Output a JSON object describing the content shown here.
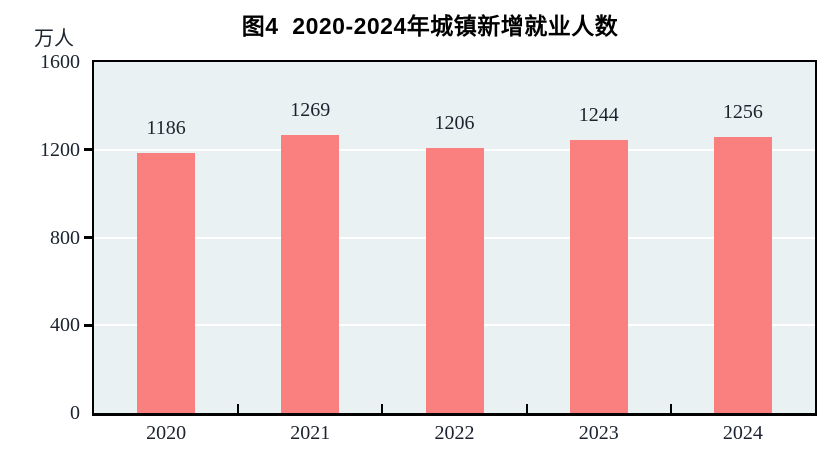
{
  "chart_data": {
    "type": "bar",
    "title": "图4  2020-2024年城镇新增就业人数",
    "unit": "万人",
    "xlabel": "",
    "ylabel": "万人",
    "categories": [
      "2020",
      "2021",
      "2022",
      "2023",
      "2024"
    ],
    "values": [
      1186,
      1269,
      1206,
      1244,
      1256
    ],
    "value_labels": [
      "1186",
      "1269",
      "1206",
      "1244",
      "1256"
    ],
    "ylim": [
      0,
      1600
    ],
    "yticks": [
      0,
      400,
      800,
      1200,
      1600
    ],
    "grid": "horizontal",
    "legend": "none",
    "colors": {
      "bar": "#fa8080",
      "plot_background": "#eaf1f3",
      "gridline": "#ffffff",
      "axis": "#000000",
      "text": "#1c232e"
    }
  }
}
